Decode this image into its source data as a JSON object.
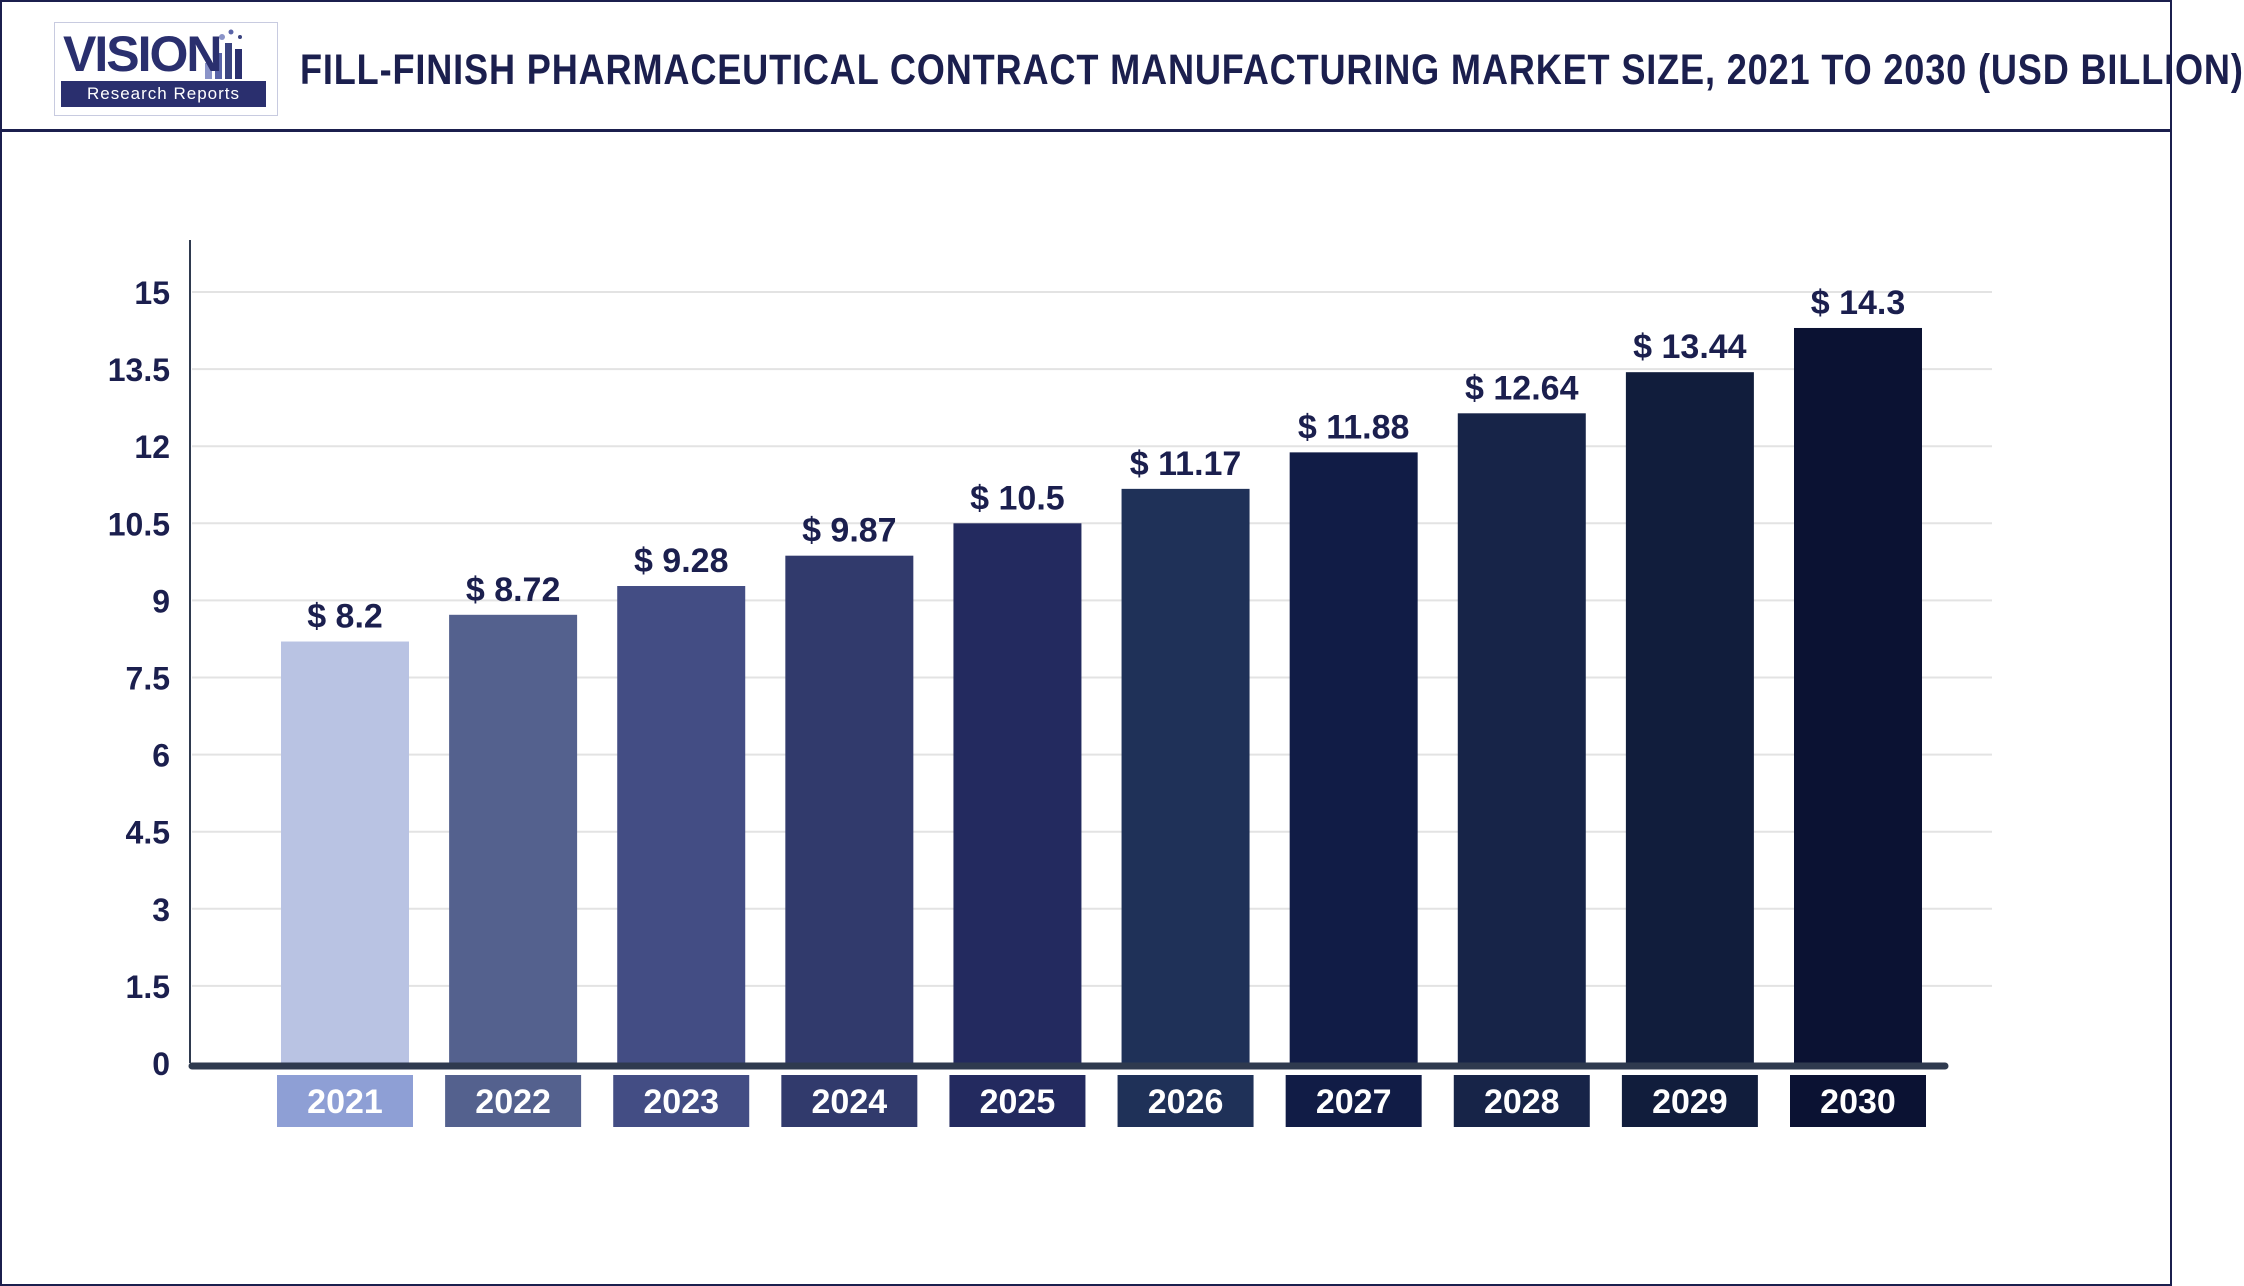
{
  "header": {
    "logo_word": "VISION",
    "logo_sub": "Research Reports",
    "title": "FILL-FINISH PHARMACEUTICAL CONTRACT MANUFACTURING MARKET SIZE, 2021 TO 2030 (USD BILLION)"
  },
  "chart_data": {
    "type": "bar",
    "title": "FILL-FINISH PHARMACEUTICAL CONTRACT MANUFACTURING MARKET SIZE, 2021 TO 2030 (USD BILLION)",
    "categories": [
      "2021",
      "2022",
      "2023",
      "2024",
      "2025",
      "2026",
      "2027",
      "2028",
      "2029",
      "2030"
    ],
    "values": [
      8.2,
      8.72,
      9.28,
      9.87,
      10.5,
      11.17,
      11.88,
      12.64,
      13.44,
      14.3
    ],
    "value_labels": [
      "$ 8.2",
      "$ 8.72",
      "$ 9.28",
      "$ 9.87",
      "$ 10.5",
      "$ 11.17",
      "$ 11.88",
      "$ 12.64",
      "$ 13.44",
      "$ 14.3"
    ],
    "yticks": [
      "0",
      "1.5",
      "3",
      "4.5",
      "6",
      "7.5",
      "9",
      "10.5",
      "12",
      "13.5",
      "15"
    ],
    "ylim": [
      0,
      16
    ],
    "xlabel": "",
    "ylabel": "",
    "grid": true,
    "legend": "none",
    "bar_colors": [
      "#b9c3e3",
      "#54618e",
      "#434d84",
      "#313a6c",
      "#232a5f",
      "#1f3158",
      "#111c46",
      "#172448",
      "#111d3c",
      "#0b1233"
    ],
    "category_label_colors": [
      "#8e9fd5",
      "#54618e",
      "#434d84",
      "#313a6c",
      "#232a5f",
      "#1f3158",
      "#111c46",
      "#172448",
      "#111d3c",
      "#0b1233"
    ],
    "text_color": "#1b1f4e",
    "grid_color": "#e3e3e3",
    "axis_color": "#2f3a4f"
  }
}
